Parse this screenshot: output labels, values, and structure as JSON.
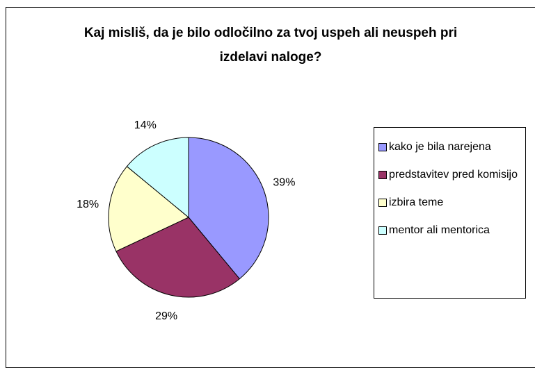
{
  "chart_data": {
    "type": "pie",
    "title": "Kaj misliš, da je bilo odločilno za tvoj uspeh ali neuspeh pri izdelavi naloge?",
    "categories": [
      "kako je bila narejena",
      "predstavitev pred komisijo",
      "izbira teme",
      "mentor ali mentorica"
    ],
    "values": [
      39,
      29,
      18,
      14
    ],
    "value_labels": [
      "39%",
      "29%",
      "18%",
      "14%"
    ],
    "colors": [
      "#9999ff",
      "#993366",
      "#ffffcc",
      "#ccffff"
    ],
    "legend": "right"
  }
}
